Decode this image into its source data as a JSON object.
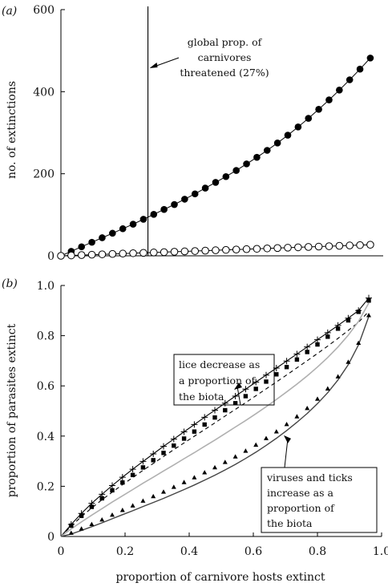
{
  "chart_data": [
    {
      "type": "scatter",
      "panel_label": "(a)",
      "ylabel": "no. of extinctions",
      "xlim": [
        0,
        1.0
      ],
      "ylim": [
        0,
        600
      ],
      "yticks": [
        "0",
        "200",
        "400",
        "600"
      ],
      "grid": false,
      "vline_x": 0.27,
      "annotation": [
        "global prop. of",
        "carnivores",
        "threatened (27%)"
      ],
      "series": [
        {
          "marker": "filled-circle",
          "color": "#000000",
          "x": [
            0.0,
            0.032,
            0.064,
            0.096,
            0.128,
            0.16,
            0.192,
            0.224,
            0.256,
            0.288,
            0.32,
            0.352,
            0.384,
            0.416,
            0.448,
            0.48,
            0.512,
            0.544,
            0.576,
            0.608,
            0.64,
            0.672,
            0.704,
            0.736,
            0.768,
            0.8,
            0.832,
            0.864,
            0.896,
            0.928,
            0.96
          ],
          "y": [
            0,
            11,
            22,
            33,
            44,
            55,
            66,
            77,
            89,
            101,
            113,
            125,
            138,
            151,
            165,
            179,
            193,
            208,
            224,
            240,
            257,
            275,
            294,
            314,
            335,
            357,
            380,
            404,
            429,
            455,
            482
          ]
        },
        {
          "marker": "open-circle",
          "color": "#000000",
          "x": [
            0.0,
            0.032,
            0.064,
            0.096,
            0.128,
            0.16,
            0.192,
            0.224,
            0.256,
            0.288,
            0.32,
            0.352,
            0.384,
            0.416,
            0.448,
            0.48,
            0.512,
            0.544,
            0.576,
            0.608,
            0.64,
            0.672,
            0.704,
            0.736,
            0.768,
            0.8,
            0.832,
            0.864,
            0.896,
            0.928,
            0.96
          ],
          "y": [
            0,
            0.9,
            1.8,
            2.7,
            3.6,
            4.5,
            5.4,
            6.3,
            7.2,
            8.1,
            9.0,
            9.9,
            10.8,
            11.7,
            12.6,
            13.5,
            14.4,
            15.3,
            16.2,
            17.1,
            18.0,
            18.9,
            19.8,
            20.7,
            21.6,
            22.5,
            23.4,
            24.3,
            25.2,
            26.1,
            27.0
          ]
        }
      ]
    },
    {
      "type": "line",
      "panel_label": "(b)",
      "xlabel": "proportion of carnivore hosts extinct",
      "ylabel": "proportion of parasites extinct",
      "xlim": [
        0,
        1.0
      ],
      "ylim": [
        0,
        1.0
      ],
      "xticks": [
        "0",
        "0.2",
        "0.4",
        "0.6",
        "0.8",
        "1.0"
      ],
      "yticks": [
        "0",
        "0.2",
        "0.4",
        "0.6",
        "0.8",
        "1.0"
      ],
      "grid": false,
      "annotation_top": [
        "lice decrease as",
        "a proportion of",
        "the biota"
      ],
      "annotation_bottom": [
        "viruses and ticks",
        "increase as a",
        "proportion of",
        "the biota"
      ],
      "x": [
        0.0,
        0.032,
        0.064,
        0.096,
        0.128,
        0.16,
        0.192,
        0.224,
        0.256,
        0.288,
        0.32,
        0.352,
        0.384,
        0.416,
        0.448,
        0.48,
        0.512,
        0.544,
        0.576,
        0.608,
        0.64,
        0.672,
        0.704,
        0.736,
        0.768,
        0.8,
        0.832,
        0.864,
        0.896,
        0.928,
        0.96
      ],
      "series": [
        {
          "marker": "plus",
          "style": "solid-thin",
          "color": "#000000",
          "values": [
            0.0,
            0.048,
            0.092,
            0.132,
            0.168,
            0.203,
            0.236,
            0.268,
            0.299,
            0.329,
            0.359,
            0.388,
            0.417,
            0.446,
            0.475,
            0.503,
            0.531,
            0.559,
            0.587,
            0.615,
            0.643,
            0.671,
            0.699,
            0.727,
            0.755,
            0.784,
            0.812,
            0.841,
            0.87,
            0.9,
            0.95
          ]
        },
        {
          "marker": "square",
          "style": "dashed",
          "color": "#000000",
          "values": [
            0.0,
            0.043,
            0.082,
            0.118,
            0.152,
            0.184,
            0.215,
            0.245,
            0.275,
            0.304,
            0.333,
            0.362,
            0.39,
            0.418,
            0.446,
            0.474,
            0.503,
            0.531,
            0.559,
            0.588,
            0.617,
            0.646,
            0.675,
            0.705,
            0.735,
            0.765,
            0.796,
            0.828,
            0.861,
            0.895,
            0.94
          ]
        },
        {
          "marker": "none",
          "style": "solid-grey",
          "color": "#b0b0b0",
          "values": [
            0.0,
            0.03,
            0.058,
            0.085,
            0.111,
            0.137,
            0.162,
            0.187,
            0.212,
            0.236,
            0.261,
            0.285,
            0.31,
            0.334,
            0.359,
            0.384,
            0.41,
            0.436,
            0.462,
            0.489,
            0.517,
            0.546,
            0.576,
            0.607,
            0.64,
            0.675,
            0.713,
            0.755,
            0.802,
            0.857,
            0.93
          ]
        },
        {
          "marker": "triangle",
          "style": "solid-dark",
          "color": "#444444",
          "values": [
            0.0,
            0.013,
            0.03,
            0.048,
            0.066,
            0.085,
            0.104,
            0.122,
            0.141,
            0.159,
            0.177,
            0.196,
            0.215,
            0.234,
            0.254,
            0.274,
            0.295,
            0.317,
            0.34,
            0.364,
            0.39,
            0.417,
            0.446,
            0.477,
            0.51,
            0.547,
            0.588,
            0.636,
            0.694,
            0.77,
            0.88
          ]
        }
      ]
    }
  ]
}
